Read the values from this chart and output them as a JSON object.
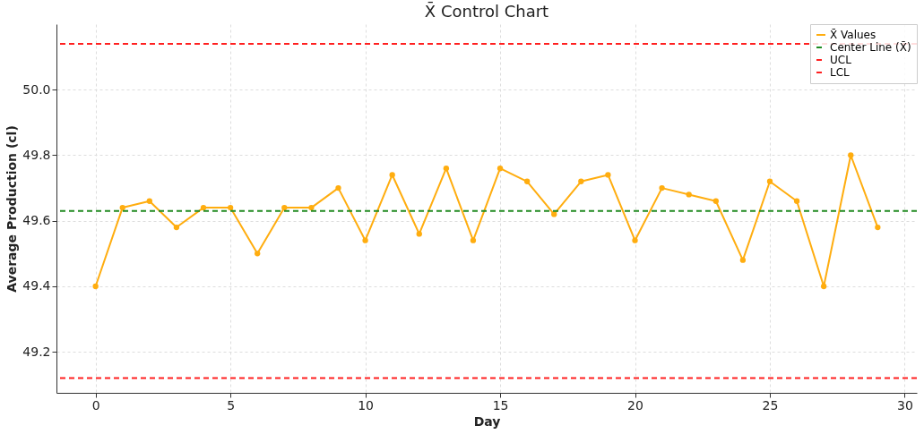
{
  "chart_data": {
    "type": "line",
    "title": "X̄ Control Chart",
    "xlabel": "Day",
    "ylabel": "Average Production (cl)",
    "x": [
      0,
      1,
      2,
      3,
      4,
      5,
      6,
      7,
      8,
      9,
      10,
      11,
      12,
      13,
      14,
      15,
      16,
      17,
      18,
      19,
      20,
      21,
      22,
      23,
      24,
      25,
      26,
      27,
      28,
      29
    ],
    "series": [
      {
        "name": "X̄ Values",
        "color": "#ffad0f",
        "values": [
          49.4,
          49.64,
          49.66,
          49.58,
          49.64,
          49.64,
          49.5,
          49.64,
          49.64,
          49.7,
          49.54,
          49.74,
          49.56,
          49.76,
          49.54,
          49.76,
          49.72,
          49.62,
          49.72,
          49.74,
          49.54,
          49.7,
          49.68,
          49.66,
          49.48,
          49.72,
          49.66,
          49.4,
          49.8,
          49.58
        ]
      }
    ],
    "ref_lines": [
      {
        "axis": "y",
        "value": 49.63,
        "label": "Center Line (X̄)",
        "color": "#228b22",
        "line_style": "dashed"
      },
      {
        "axis": "y",
        "value": 50.14,
        "label": "UCL",
        "color": "#ff2020",
        "line_style": "dashed"
      },
      {
        "axis": "y",
        "value": 49.12,
        "label": "LCL",
        "color": "#ff2020",
        "line_style": "dashed"
      }
    ],
    "xlim": [
      -1.45,
      30.45
    ],
    "xticks": [
      0,
      5,
      10,
      15,
      20,
      25,
      30
    ],
    "ylim": [
      49.075,
      50.2
    ],
    "yticks": [
      49.2,
      49.4,
      49.6,
      49.8,
      {
        "value": 50,
        "label": "50.0"
      }
    ],
    "grid": true,
    "legend": "top right",
    "marker": "circle",
    "line_style": "solid"
  }
}
